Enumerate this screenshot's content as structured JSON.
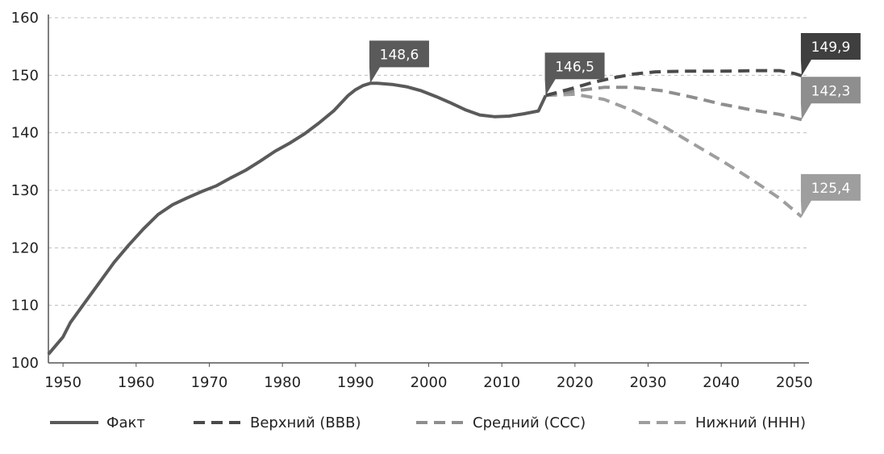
{
  "chart_data": {
    "type": "line",
    "title": "",
    "xlabel": "",
    "ylabel": "",
    "xlim": [
      1948,
      2052
    ],
    "ylim": [
      100,
      160
    ],
    "x_ticks": [
      1950,
      1960,
      1970,
      1980,
      1990,
      2000,
      2010,
      2020,
      2030,
      2040,
      2050
    ],
    "y_ticks": [
      100,
      110,
      120,
      130,
      140,
      150,
      160
    ],
    "grid": "horizontal dashed",
    "legend_position": "bottom",
    "series": [
      {
        "name": "Факт",
        "style": "solid",
        "color": "#5a5a5a",
        "points": [
          [
            1948,
            101.5
          ],
          [
            1950,
            104.5
          ],
          [
            1951,
            107
          ],
          [
            1953,
            110.5
          ],
          [
            1955,
            114
          ],
          [
            1957,
            117.5
          ],
          [
            1959,
            120.5
          ],
          [
            1961,
            123.3
          ],
          [
            1963,
            125.8
          ],
          [
            1965,
            127.5
          ],
          [
            1967,
            128.7
          ],
          [
            1969,
            129.8
          ],
          [
            1971,
            130.8
          ],
          [
            1973,
            132.2
          ],
          [
            1975,
            133.5
          ],
          [
            1977,
            135.1
          ],
          [
            1979,
            136.8
          ],
          [
            1981,
            138.2
          ],
          [
            1983,
            139.8
          ],
          [
            1985,
            141.7
          ],
          [
            1987,
            143.8
          ],
          [
            1989,
            146.5
          ],
          [
            1990,
            147.5
          ],
          [
            1991,
            148.2
          ],
          [
            1992,
            148.6
          ],
          [
            1993,
            148.6
          ],
          [
            1995,
            148.4
          ],
          [
            1997,
            148.0
          ],
          [
            1999,
            147.3
          ],
          [
            2001,
            146.3
          ],
          [
            2003,
            145.2
          ],
          [
            2005,
            144.0
          ],
          [
            2007,
            143.1
          ],
          [
            2009,
            142.8
          ],
          [
            2011,
            142.9
          ],
          [
            2013,
            143.3
          ],
          [
            2015,
            143.8
          ],
          [
            2016,
            146.5
          ]
        ]
      },
      {
        "name": "Верхний (ВВВ)",
        "style": "dashed",
        "color": "#4a4a4a",
        "points": [
          [
            2016,
            146.5
          ],
          [
            2019,
            147.5
          ],
          [
            2022,
            148.6
          ],
          [
            2025,
            149.5
          ],
          [
            2028,
            150.2
          ],
          [
            2031,
            150.6
          ],
          [
            2035,
            150.7
          ],
          [
            2040,
            150.7
          ],
          [
            2045,
            150.8
          ],
          [
            2048,
            150.8
          ],
          [
            2050,
            150.3
          ],
          [
            2051,
            149.9
          ]
        ]
      },
      {
        "name": "Средний (ССС)",
        "style": "dashed",
        "color": "#8e8e8e",
        "points": [
          [
            2016,
            146.5
          ],
          [
            2020,
            147.3
          ],
          [
            2024,
            147.9
          ],
          [
            2028,
            147.9
          ],
          [
            2032,
            147.3
          ],
          [
            2036,
            146.2
          ],
          [
            2040,
            145.0
          ],
          [
            2044,
            144.0
          ],
          [
            2048,
            143.2
          ],
          [
            2051,
            142.3
          ]
        ]
      },
      {
        "name": "Нижний (ННН)",
        "style": "dashed",
        "color": "#9e9e9e",
        "points": [
          [
            2016,
            146.5
          ],
          [
            2020,
            146.7
          ],
          [
            2024,
            145.8
          ],
          [
            2028,
            143.8
          ],
          [
            2032,
            141.2
          ],
          [
            2036,
            138.2
          ],
          [
            2040,
            135.2
          ],
          [
            2044,
            132.0
          ],
          [
            2048,
            128.6
          ],
          [
            2051,
            125.4
          ]
        ]
      }
    ],
    "annotations": [
      {
        "text": "148,6",
        "x": 1992,
        "y": 148.6,
        "color": "#5a5a5a"
      },
      {
        "text": "146,5",
        "x": 2016,
        "y": 146.5,
        "color": "#5a5a5a"
      },
      {
        "text": "149,9",
        "x": 2051,
        "y": 149.9,
        "color": "#3f3f3f"
      },
      {
        "text": "142,3",
        "x": 2051,
        "y": 142.3,
        "color": "#8e8e8e"
      },
      {
        "text": "125,4",
        "x": 2051,
        "y": 125.4,
        "color": "#9e9e9e"
      }
    ]
  }
}
